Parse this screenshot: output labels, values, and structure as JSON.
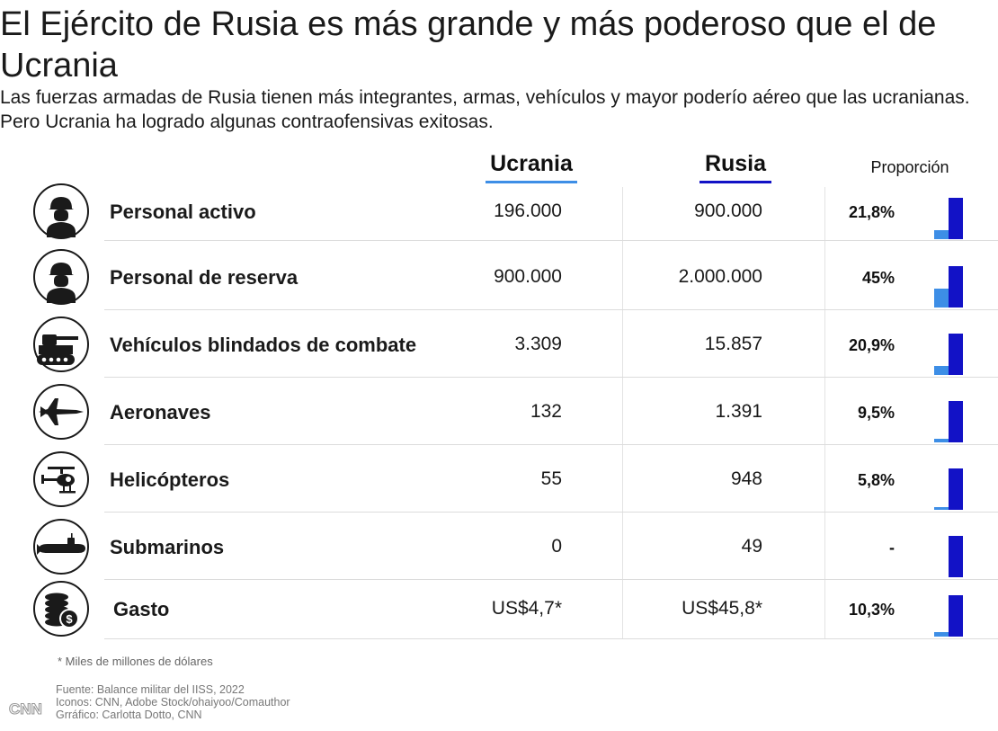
{
  "header": {
    "title": "El Ejército de Rusia es más grande y más poderoso que el de Ucrania",
    "subtitle": "Las fuerzas armadas de Rusia tienen más integrantes, armas, vehículos y mayor poderío aéreo que las ucranianas. Pero Ucrania ha logrado algunas contraofensivas exitosas."
  },
  "columns": {
    "ukraine": "Ucrania",
    "russia": "Rusia",
    "ratio": "Proporción"
  },
  "colors": {
    "ukraine": "#3d8ee6",
    "russia": "#1212c6"
  },
  "chart_data": {
    "type": "table",
    "rows": [
      {
        "icon": "soldier-icon",
        "label": "Personal activo",
        "ukraine": "196.000",
        "russia": "900.000",
        "ratio": "21,8%",
        "ukraine_value": 196000,
        "russia_value": 900000,
        "ratio_value": 0.218
      },
      {
        "icon": "soldier-icon",
        "label": "Personal de reserva",
        "ukraine": "900.000",
        "russia": "2.000.000",
        "ratio": "45%",
        "ukraine_value": 900000,
        "russia_value": 2000000,
        "ratio_value": 0.45
      },
      {
        "icon": "tank-icon",
        "label": "Vehículos blindados de combate",
        "ukraine": "3.309",
        "russia": "15.857",
        "ratio": "20,9%",
        "ukraine_value": 3309,
        "russia_value": 15857,
        "ratio_value": 0.209
      },
      {
        "icon": "jet-icon",
        "label": "Aeronaves",
        "ukraine": "132",
        "russia": "1.391",
        "ratio": "9,5%",
        "ukraine_value": 132,
        "russia_value": 1391,
        "ratio_value": 0.095
      },
      {
        "icon": "helicopter-icon",
        "label": "Helicópteros",
        "ukraine": "55",
        "russia": "948",
        "ratio": "5,8%",
        "ukraine_value": 55,
        "russia_value": 948,
        "ratio_value": 0.058
      },
      {
        "icon": "submarine-icon",
        "label": "Submarinos",
        "ukraine": "0",
        "russia": "49",
        "ratio": "-",
        "ukraine_value": 0,
        "russia_value": 49,
        "ratio_value": 0
      },
      {
        "icon": "money-icon",
        "label": "Gasto",
        "ukraine": "US$4,7*",
        "russia": "US$45,8*",
        "ratio": "10,3%",
        "ukraine_value": 4.7,
        "russia_value": 45.8,
        "ratio_value": 0.103
      }
    ]
  },
  "footnote": "* Miles de millones de dólares",
  "credits": [
    "Fuente: Balance militar del IISS, 2022",
    "Iconos: CNN, Adobe Stock/ohaiyoo/Comauthor",
    "Grráfico: Carlotta Dotto, CNN"
  ],
  "logo": "CNN"
}
